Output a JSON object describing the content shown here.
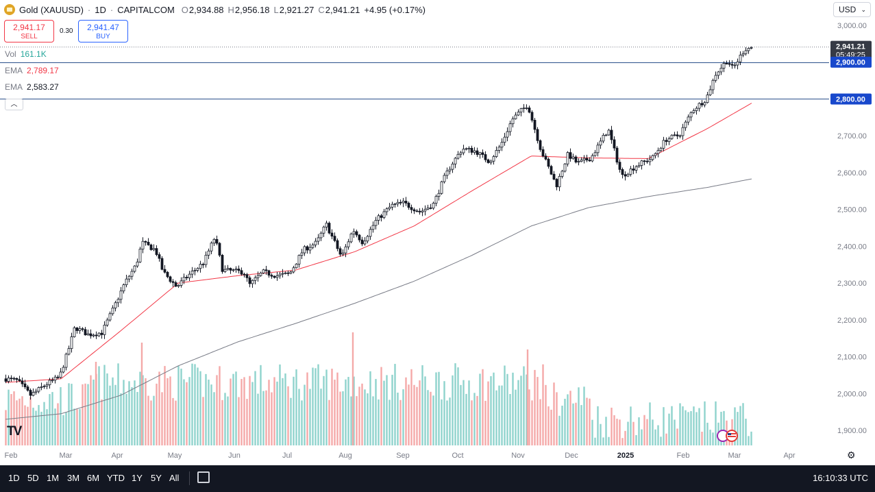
{
  "header": {
    "symbol": "Gold (XAUUSD)",
    "interval": "1D",
    "source": "CAPITALCOM",
    "sep": "·",
    "open_label": "O",
    "open": "2,934.88",
    "high_label": "H",
    "high": "2,956.18",
    "low_label": "L",
    "low": "2,921.27",
    "close_label": "C",
    "close": "2,941.21",
    "change": "+4.95 (+0.17%)"
  },
  "trade": {
    "sell_price": "2,941.17",
    "sell_label": "SELL",
    "spread": "0.30",
    "buy_price": "2,941.47",
    "buy_label": "BUY"
  },
  "legend": {
    "vol_label": "Vol",
    "vol_value": "161.1K",
    "ema1_label": "EMA",
    "ema1_value": "2,789.17",
    "ema2_label": "EMA",
    "ema2_value": "2,583.27",
    "vol_color": "#26a69a",
    "ema1_color": "#f23645"
  },
  "collapse_icon": "chevron-up-icon",
  "currency": "USD",
  "timeframes": [
    "1D",
    "5D",
    "1M",
    "3M",
    "6M",
    "YTD",
    "1Y",
    "5Y",
    "All"
  ],
  "clock": "16:10:33 UTC",
  "chart_data": {
    "type": "candlestick",
    "title": "Gold (XAUUSD) · 1D · CAPITALCOM",
    "ylim": [
      1860,
      3030
    ],
    "y_ticks": [
      "3,000.00",
      "2,900.00",
      "2,800.00",
      "2,700.00",
      "2,600.00",
      "2,500.00",
      "2,400.00",
      "2,300.00",
      "2,200.00",
      "2,100.00",
      "2,000.00",
      "1,900.00"
    ],
    "x_ticks": [
      "Feb",
      "Mar",
      "Apr",
      "May",
      "Jun",
      "Jul",
      "Aug",
      "Sep",
      "Oct",
      "Nov",
      "Dec",
      "2025",
      "Feb",
      "Mar",
      "Apr"
    ],
    "price_path": [
      [
        "2024-02-01",
        2040
      ],
      [
        "2024-02-07",
        2035
      ],
      [
        "2024-02-14",
        1995
      ],
      [
        "2024-02-22",
        2025
      ],
      [
        "2024-02-29",
        2045
      ],
      [
        "2024-03-05",
        2125
      ],
      [
        "2024-03-08",
        2180
      ],
      [
        "2024-03-15",
        2160
      ],
      [
        "2024-03-22",
        2165
      ],
      [
        "2024-03-28",
        2230
      ],
      [
        "2024-04-03",
        2300
      ],
      [
        "2024-04-09",
        2350
      ],
      [
        "2024-04-12",
        2410
      ],
      [
        "2024-04-19",
        2390
      ],
      [
        "2024-04-23",
        2330
      ],
      [
        "2024-04-30",
        2290
      ],
      [
        "2024-05-06",
        2320
      ],
      [
        "2024-05-14",
        2355
      ],
      [
        "2024-05-20",
        2425
      ],
      [
        "2024-05-24",
        2335
      ],
      [
        "2024-06-04",
        2330
      ],
      [
        "2024-06-07",
        2295
      ],
      [
        "2024-06-14",
        2330
      ],
      [
        "2024-06-21",
        2320
      ],
      [
        "2024-06-28",
        2325
      ],
      [
        "2024-07-05",
        2390
      ],
      [
        "2024-07-12",
        2410
      ],
      [
        "2024-07-17",
        2460
      ],
      [
        "2024-07-25",
        2370
      ],
      [
        "2024-07-31",
        2445
      ],
      [
        "2024-08-05",
        2410
      ],
      [
        "2024-08-12",
        2470
      ],
      [
        "2024-08-20",
        2510
      ],
      [
        "2024-08-26",
        2518
      ],
      [
        "2024-09-04",
        2493
      ],
      [
        "2024-09-11",
        2515
      ],
      [
        "2024-09-16",
        2580
      ],
      [
        "2024-09-20",
        2620
      ],
      [
        "2024-09-26",
        2665
      ],
      [
        "2024-10-03",
        2658
      ],
      [
        "2024-10-10",
        2630
      ],
      [
        "2024-10-16",
        2675
      ],
      [
        "2024-10-22",
        2745
      ],
      [
        "2024-10-30",
        2785
      ],
      [
        "2024-11-06",
        2660
      ],
      [
        "2024-11-14",
        2565
      ],
      [
        "2024-11-20",
        2650
      ],
      [
        "2024-11-25",
        2625
      ],
      [
        "2024-12-02",
        2640
      ],
      [
        "2024-12-11",
        2718
      ],
      [
        "2024-12-18",
        2590
      ],
      [
        "2024-12-26",
        2620
      ],
      [
        "2025-01-03",
        2640
      ],
      [
        "2025-01-10",
        2690
      ],
      [
        "2025-01-17",
        2702
      ],
      [
        "2025-01-24",
        2770
      ],
      [
        "2025-01-31",
        2800
      ],
      [
        "2025-02-05",
        2868
      ],
      [
        "2025-02-11",
        2905
      ],
      [
        "2025-02-14",
        2882
      ],
      [
        "2025-02-20",
        2935
      ],
      [
        "2025-02-24",
        2941
      ]
    ],
    "ema_short_anchors": [
      [
        "2024-02-01",
        2030
      ],
      [
        "2024-03-01",
        2040
      ],
      [
        "2024-04-01",
        2170
      ],
      [
        "2024-05-01",
        2300
      ],
      [
        "2024-06-01",
        2320
      ],
      [
        "2024-07-01",
        2335
      ],
      [
        "2024-08-01",
        2385
      ],
      [
        "2024-09-01",
        2455
      ],
      [
        "2024-10-01",
        2550
      ],
      [
        "2024-11-01",
        2645
      ],
      [
        "2024-12-01",
        2640
      ],
      [
        "2025-01-01",
        2638
      ],
      [
        "2025-02-01",
        2720
      ],
      [
        "2025-02-24",
        2789
      ]
    ],
    "ema_long_anchors": [
      [
        "2024-02-01",
        1930
      ],
      [
        "2024-03-01",
        1945
      ],
      [
        "2024-04-01",
        1995
      ],
      [
        "2024-05-01",
        2075
      ],
      [
        "2024-06-01",
        2140
      ],
      [
        "2024-07-01",
        2190
      ],
      [
        "2024-08-01",
        2245
      ],
      [
        "2024-09-01",
        2305
      ],
      [
        "2024-10-01",
        2375
      ],
      [
        "2024-11-01",
        2455
      ],
      [
        "2024-12-01",
        2505
      ],
      [
        "2025-01-01",
        2535
      ],
      [
        "2025-02-01",
        2560
      ],
      [
        "2025-02-24",
        2583
      ]
    ],
    "horizontal_lines": [
      {
        "value": 2900,
        "label": "2,900.00"
      },
      {
        "value": 2800,
        "label": "2,800.00"
      }
    ],
    "last_price": {
      "value": 2941.21,
      "label": "2,941.21",
      "countdown": "05:49:25"
    },
    "series": [
      {
        "name": "Vol",
        "type": "volume"
      },
      {
        "name": "EMA",
        "value": "2,789.17"
      },
      {
        "name": "EMA",
        "value": "2,583.27"
      }
    ],
    "colors": {
      "up": "#131722",
      "down": "#131722",
      "vol_up": "#26a69a",
      "vol_down": "#ef5350",
      "ema_short": "#f23645",
      "ema_long": "#787b86",
      "hline": "#2a4f8a",
      "label_bg": "#1848cc"
    }
  }
}
